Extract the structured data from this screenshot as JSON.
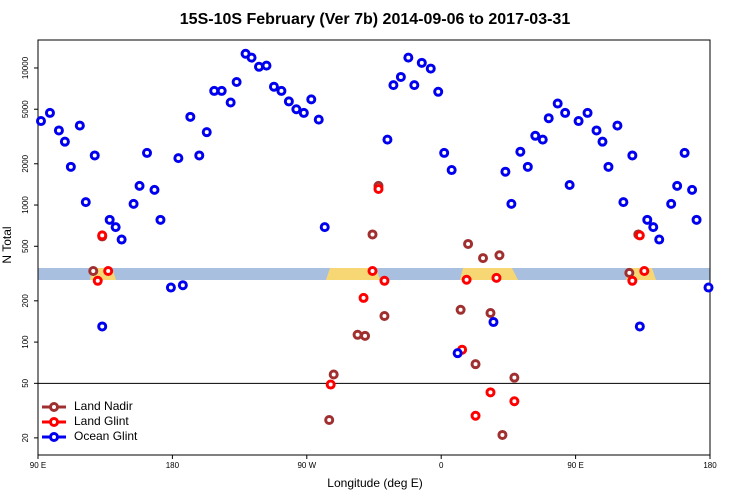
{
  "chart_data": {
    "type": "scatter",
    "title": "15S-10S February (Ver 7b)   2014-09-06 to 2017-03-31",
    "x_label": "Longitude (deg E)",
    "y_label": "N Total",
    "log_y": true,
    "grid": false,
    "legend": "lower left",
    "hline": 50,
    "xlim": [
      90,
      540
    ],
    "xticks": [
      {
        "value": 90,
        "label": "90 E"
      },
      {
        "value": 180,
        "label": "180"
      },
      {
        "value": 270,
        "label": "90 W"
      },
      {
        "value": 360,
        "label": "0"
      },
      {
        "value": 450,
        "label": "90 E"
      },
      {
        "value": 540,
        "label": "180"
      }
    ],
    "ylim": [
      15,
      16000
    ],
    "yticks": [
      20,
      50,
      100,
      200,
      500,
      1000,
      2000,
      5000,
      10000
    ],
    "series": [
      {
        "name": "Land Nadir",
        "color": "#a03030",
        "x": [
          127,
          133,
          285,
          288,
          304,
          309,
          314,
          318,
          322,
          373,
          378,
          383,
          388,
          393,
          399,
          401,
          409,
          486,
          492
        ],
        "values": [
          330,
          590,
          27,
          58,
          113,
          111,
          610,
          1380,
          155,
          172,
          520,
          69,
          410,
          163,
          430,
          21,
          55,
          320,
          610
        ]
      },
      {
        "name": "Land Glint",
        "color": "#ff0000",
        "x": [
          130,
          133,
          137,
          286,
          308,
          314,
          318,
          322,
          374,
          377,
          383,
          393,
          397,
          409,
          488,
          493,
          496
        ],
        "values": [
          280,
          600,
          330,
          49,
          210,
          330,
          1310,
          280,
          88,
          285,
          29,
          43,
          294,
          37,
          280,
          600,
          330
        ]
      },
      {
        "name": "Ocean Glint",
        "color": "#0000ee",
        "x": [
          92,
          98,
          104,
          108,
          112,
          118,
          122,
          128,
          133,
          138,
          142,
          146,
          154,
          158,
          163,
          168,
          172,
          179,
          184,
          187,
          192,
          198,
          203,
          208,
          213,
          219,
          223,
          229,
          233,
          238,
          243,
          248,
          253,
          258,
          263,
          268,
          273,
          278,
          282,
          324,
          328,
          333,
          338,
          342,
          347,
          353,
          358,
          362,
          367,
          371,
          395,
          403,
          407,
          413,
          418,
          423,
          428,
          432,
          438,
          443,
          446,
          452,
          458,
          464,
          468,
          472,
          478,
          482,
          488,
          493,
          498,
          502,
          506,
          514,
          518,
          523,
          528,
          531,
          539
        ],
        "values": [
          4100,
          4700,
          3500,
          2900,
          1900,
          3800,
          1050,
          2300,
          130,
          780,
          690,
          560,
          1020,
          1380,
          2400,
          1290,
          780,
          250,
          2200,
          260,
          4400,
          2300,
          3400,
          6800,
          6800,
          5600,
          7900,
          12700,
          11900,
          10200,
          10400,
          7300,
          6800,
          5700,
          5000,
          4700,
          5900,
          4200,
          690,
          3000,
          7500,
          8600,
          11900,
          7500,
          10900,
          9900,
          6700,
          2400,
          1800,
          83,
          140,
          1750,
          1020,
          2450,
          1900,
          3200,
          3000,
          4300,
          5500,
          4700,
          1400,
          4100,
          4700,
          3500,
          2900,
          1900,
          3800,
          1050,
          2300,
          130,
          780,
          690,
          560,
          1020,
          1380,
          2400,
          1290,
          780,
          250
        ]
      }
    ]
  }
}
